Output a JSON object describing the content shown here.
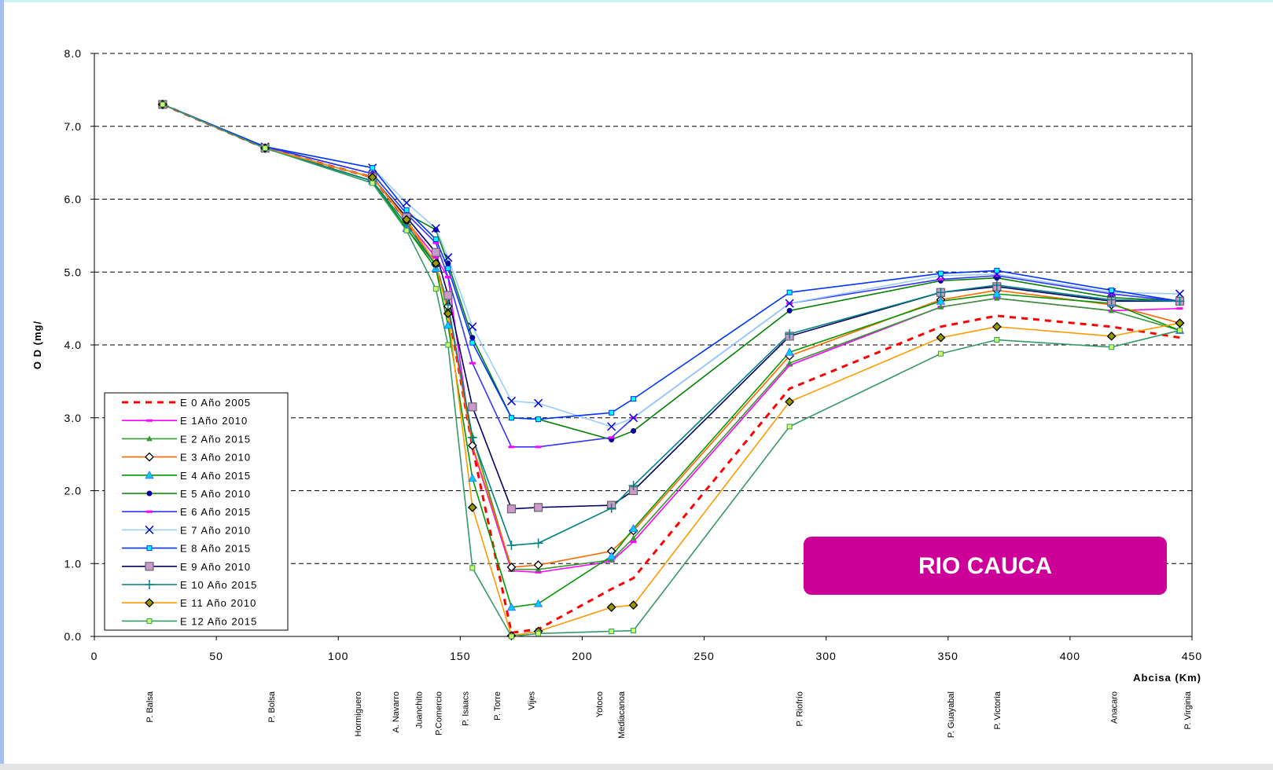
{
  "chart_data": {
    "type": "line",
    "y_label": "O D (mg/",
    "x_label": "Abcisa (Km)",
    "annotation": "RIO CAUCA",
    "xlim": [
      0,
      450
    ],
    "xticks": [
      0,
      50,
      100,
      150,
      200,
      250,
      300,
      350,
      400,
      450
    ],
    "ylim": [
      0,
      8
    ],
    "yticks": [
      {
        "value": 0,
        "label": "0.0"
      },
      {
        "value": 1,
        "label": "1.0"
      },
      {
        "value": 2,
        "label": "2.0"
      },
      {
        "value": 3,
        "label": "3.0"
      },
      {
        "value": 4,
        "label": "4.0"
      },
      {
        "value": 5,
        "label": "5.0"
      },
      {
        "value": 6,
        "label": "6.0"
      },
      {
        "value": 7,
        "label": "7.0"
      },
      {
        "value": 8,
        "label": "8.0"
      }
    ],
    "grid": true,
    "legend": "lower left",
    "stations": [
      {
        "text": "P. Balsa",
        "x": 22.5
      },
      {
        "text": "P. Bolsa",
        "x": 72.5
      },
      {
        "text": "Hormiguero",
        "x": 108
      },
      {
        "text": "A. Navarro",
        "x": 123.5
      },
      {
        "text": "Juanchito",
        "x": 133
      },
      {
        "text": "P.Comercio",
        "x": 141
      },
      {
        "text": "P. Isaacs",
        "x": 152
      },
      {
        "text": "P. Torre",
        "x": 165
      },
      {
        "text": "Vijes",
        "x": 179
      },
      {
        "text": "Yotoco",
        "x": 207
      },
      {
        "text": "Mediacanoa",
        "x": 216
      },
      {
        "text": "P. Riofrío",
        "x": 289
      },
      {
        "text": "P. Guayabal",
        "x": 351
      },
      {
        "text": "P. Victoria",
        "x": 370
      },
      {
        "text": "Anacaro",
        "x": 418
      },
      {
        "text": "P. Virginia",
        "x": 448
      }
    ],
    "x": [
      28,
      70,
      114,
      128,
      140,
      145,
      155,
      171,
      182,
      212,
      221,
      285,
      347,
      370,
      417,
      445
    ],
    "series": [
      {
        "name": "E 0 Año 2005",
        "color": "#ff0000",
        "dash": true,
        "marker": "none",
        "marker_color": "#ff0000",
        "values": [
          7.3,
          6.7,
          6.3,
          5.7,
          5.1,
          4.5,
          2.6,
          0.05,
          0.1,
          0.65,
          0.8,
          3.4,
          4.25,
          4.4,
          4.25,
          4.1
        ]
      },
      {
        "name": "E 1Año 2010",
        "color": "#ff00ff",
        "dash": false,
        "marker": "dash",
        "marker_color": "#ff00ff",
        "values": [
          7.3,
          6.7,
          6.3,
          5.7,
          5.2,
          4.93,
          2.6,
          0.9,
          0.88,
          1.03,
          1.3,
          3.72,
          4.52,
          4.64,
          4.47,
          4.5
        ]
      },
      {
        "name": "E 2 Año 2015",
        "color": "#339933",
        "dash": false,
        "marker": "triangle-small",
        "marker_color": "#339933",
        "values": [
          7.3,
          6.7,
          6.25,
          5.6,
          5.1,
          4.5,
          2.75,
          0.92,
          0.92,
          1.05,
          1.35,
          3.75,
          4.52,
          4.64,
          4.47,
          4.2
        ]
      },
      {
        "name": "E 3 Año 2010",
        "color": "#ff6600",
        "dash": false,
        "marker": "diamond",
        "marker_color": "#ffffff",
        "values": [
          7.3,
          6.7,
          6.3,
          5.7,
          5.1,
          4.53,
          2.62,
          0.95,
          0.98,
          1.17,
          1.45,
          3.85,
          4.62,
          4.75,
          4.55,
          4.3
        ]
      },
      {
        "name": "E 4 Año 2015",
        "color": "#009900",
        "dash": false,
        "marker": "triangle",
        "marker_color": "#00ccff",
        "values": [
          7.3,
          6.7,
          6.25,
          5.6,
          5.05,
          4.27,
          2.17,
          0.4,
          0.45,
          1.1,
          1.48,
          3.9,
          4.6,
          4.7,
          4.57,
          4.2
        ]
      },
      {
        "name": "E 5 Año 2010",
        "color": "#008000",
        "dash": false,
        "marker": "circle",
        "marker_color": "#000099",
        "values": [
          7.3,
          6.72,
          6.35,
          5.8,
          5.58,
          5.12,
          4.1,
          3.0,
          2.98,
          2.7,
          2.82,
          4.47,
          4.88,
          4.92,
          4.65,
          4.6
        ]
      },
      {
        "name": "E 6 Año 2015",
        "color": "#3333ff",
        "dash": false,
        "marker": "dash",
        "marker_color": "#ff00ff",
        "values": [
          7.3,
          6.72,
          6.35,
          5.8,
          5.4,
          4.93,
          3.75,
          2.6,
          2.6,
          2.73,
          3.0,
          4.57,
          4.9,
          4.95,
          4.7,
          4.6
        ]
      },
      {
        "name": "E 7 Año 2010",
        "color": "#99ccff",
        "dash": false,
        "marker": "x",
        "marker_color": "#0000cc",
        "values": [
          7.3,
          6.72,
          6.43,
          5.95,
          5.6,
          5.2,
          4.25,
          3.23,
          3.2,
          2.88,
          3.0,
          4.57,
          4.95,
          4.97,
          4.72,
          4.7
        ]
      },
      {
        "name": "E 8 Año 2015",
        "color": "#0033ff",
        "dash": false,
        "marker": "square-small",
        "marker_color": "#00ffff",
        "values": [
          7.3,
          6.72,
          6.43,
          5.85,
          5.45,
          5.05,
          4.03,
          3.0,
          2.98,
          3.07,
          3.26,
          4.72,
          4.98,
          5.02,
          4.75,
          4.6
        ]
      },
      {
        "name": "E 9 Año 2010",
        "color": "#000066",
        "dash": false,
        "marker": "square",
        "marker_color": "#cc99cc",
        "values": [
          7.3,
          6.7,
          6.3,
          5.75,
          5.27,
          4.68,
          3.15,
          1.75,
          1.77,
          1.8,
          2.0,
          4.12,
          4.72,
          4.8,
          4.6,
          4.6
        ]
      },
      {
        "name": "E 10 Año 2015",
        "color": "#008080",
        "dash": false,
        "marker": "plus",
        "marker_color": "#008080",
        "values": [
          7.3,
          6.7,
          6.25,
          5.65,
          5.1,
          4.55,
          2.73,
          1.25,
          1.28,
          1.76,
          2.07,
          4.15,
          4.72,
          4.82,
          4.62,
          4.6
        ]
      },
      {
        "name": "E 11 Año 2010",
        "color": "#ff9900",
        "dash": false,
        "marker": "diamond",
        "marker_color": "#999900",
        "values": [
          7.3,
          6.7,
          6.3,
          5.72,
          5.12,
          4.43,
          1.77,
          0.01,
          0.07,
          0.4,
          0.43,
          3.22,
          4.1,
          4.25,
          4.12,
          4.3
        ]
      },
      {
        "name": "E 12 Año 2015",
        "color": "#339966",
        "dash": false,
        "marker": "square-small",
        "marker_color": "#ccff66",
        "values": [
          7.3,
          6.7,
          6.22,
          5.57,
          4.77,
          4.0,
          0.94,
          0.0,
          0.04,
          0.07,
          0.08,
          2.88,
          3.88,
          4.07,
          3.97,
          4.2
        ]
      }
    ]
  }
}
